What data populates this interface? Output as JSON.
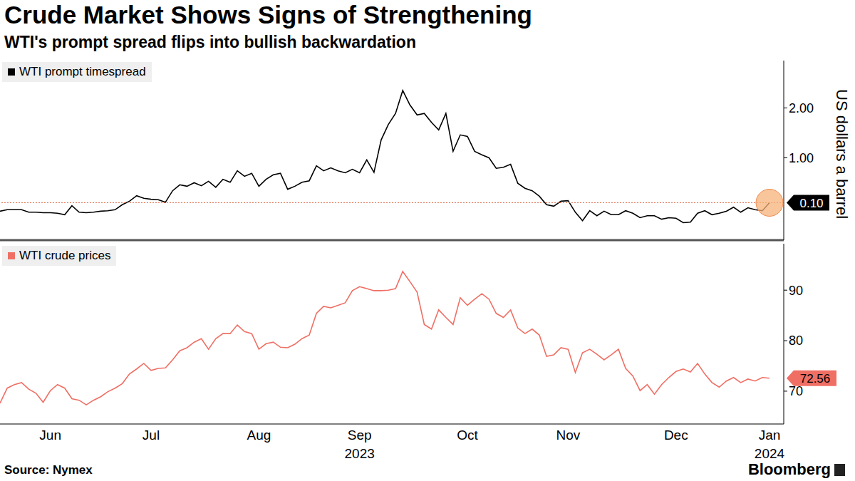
{
  "chart_data": [
    {
      "type": "line",
      "title": "Crude Market Shows Signs of Strengthening",
      "subtitle": "WTI's prompt spread flips into bullish backwardation",
      "y_label": "US dollars a barrel",
      "tick_labels": "y",
      "categories": [
        null,
        null,
        null,
        null,
        null,
        null,
        null,
        null,
        null,
        null,
        null,
        null,
        null,
        null,
        null,
        null,
        null,
        null,
        null,
        null,
        null,
        null,
        null,
        null,
        null,
        null,
        null,
        null,
        null,
        null,
        null,
        null,
        null,
        null,
        null,
        null,
        null,
        null,
        null,
        null,
        null,
        null,
        null,
        null,
        null,
        null,
        null,
        null,
        null,
        null,
        null,
        null,
        null,
        null,
        null,
        null,
        null,
        null,
        null,
        null,
        null,
        null,
        null,
        null,
        null,
        null,
        null,
        null,
        null,
        null,
        null,
        null,
        null,
        null,
        null,
        null,
        null,
        null,
        null,
        null,
        null,
        null,
        null,
        null,
        null,
        null,
        null,
        null,
        null,
        null,
        null,
        null,
        null,
        null,
        null,
        null,
        null,
        null,
        null,
        null,
        null,
        null,
        null,
        null,
        null,
        null,
        null,
        null
      ],
      "series": [
        {
          "name": "WTI prompt timespread",
          "color": "#000000",
          "values": [
            -0.07,
            -0.04,
            -0.04,
            -0.04,
            -0.09,
            -0.09,
            -0.1,
            -0.1,
            -0.11,
            -0.14,
            0.04,
            -0.09,
            -0.1,
            -0.09,
            -0.07,
            -0.06,
            -0.04,
            0.06,
            0.13,
            0.24,
            0.19,
            0.17,
            0.16,
            0.11,
            0.34,
            0.46,
            0.43,
            0.5,
            0.44,
            0.53,
            0.41,
            0.57,
            0.51,
            0.74,
            0.63,
            0.69,
            0.43,
            0.57,
            0.66,
            0.69,
            0.37,
            0.43,
            0.51,
            0.54,
            0.84,
            0.74,
            0.8,
            0.74,
            0.7,
            0.77,
            0.7,
            0.96,
            0.71,
            1.36,
            1.67,
            1.89,
            2.35,
            2.06,
            1.86,
            1.89,
            1.71,
            1.56,
            1.89,
            1.13,
            1.46,
            1.43,
            1.13,
            1.06,
            1.0,
            0.79,
            0.81,
            0.87,
            0.49,
            0.39,
            0.34,
            0.23,
            0.06,
            0.03,
            0.13,
            0.14,
            -0.09,
            -0.26,
            -0.06,
            -0.16,
            -0.07,
            -0.14,
            -0.14,
            -0.06,
            -0.11,
            -0.2,
            -0.16,
            -0.16,
            -0.23,
            -0.2,
            -0.21,
            -0.3,
            -0.29,
            -0.11,
            -0.06,
            -0.14,
            -0.11,
            -0.07,
            0.01,
            -0.09,
            0,
            -0.04,
            -0.06,
            0.1
          ]
        }
      ],
      "ylim": [
        -0.65,
        2.95
      ],
      "yticks": [
        {
          "value": 1,
          "label": "1.00"
        },
        {
          "value": 2,
          "label": "2.00"
        }
      ],
      "end_label": {
        "value": 0.1,
        "label": "0.10"
      }
    },
    {
      "type": "line",
      "source": "Source: Nymex",
      "credit": "Bloomberg",
      "categories": [
        null,
        null,
        null,
        null,
        null,
        null,
        null,
        "Jun",
        null,
        null,
        null,
        null,
        null,
        null,
        null,
        null,
        null,
        null,
        null,
        null,
        null,
        "Jul",
        null,
        null,
        null,
        null,
        null,
        null,
        null,
        null,
        null,
        null,
        null,
        null,
        null,
        null,
        "Aug",
        null,
        null,
        null,
        null,
        null,
        null,
        null,
        null,
        null,
        null,
        null,
        null,
        null,
        "Sep 2023",
        null,
        null,
        null,
        null,
        null,
        null,
        null,
        null,
        null,
        null,
        null,
        null,
        null,
        null,
        "Oct",
        null,
        null,
        null,
        null,
        null,
        null,
        null,
        null,
        null,
        null,
        null,
        null,
        null,
        "Nov",
        null,
        null,
        null,
        null,
        null,
        null,
        null,
        null,
        null,
        null,
        null,
        null,
        null,
        null,
        "Dec",
        null,
        null,
        null,
        null,
        null,
        null,
        null,
        null,
        null,
        null,
        null,
        null,
        "Jan 2024"
      ],
      "series": [
        {
          "name": "WTI crude prices",
          "color": "#ef6f64",
          "values": [
            67.6,
            70.6,
            71.3,
            71.7,
            70.4,
            69.6,
            67.8,
            70.1,
            71.3,
            70.6,
            68.5,
            68.2,
            67.3,
            68.2,
            68.9,
            69.9,
            70.6,
            71.5,
            73.4,
            74.4,
            75.5,
            74.1,
            74.5,
            74.6,
            76.2,
            78,
            78.6,
            79.7,
            80.4,
            78.3,
            80.4,
            81.4,
            81.4,
            83.1,
            81.8,
            81.4,
            78.3,
            79.4,
            79.7,
            78.7,
            78.6,
            79.3,
            80.4,
            81.1,
            85.4,
            86.8,
            86.5,
            87.0,
            87.5,
            89.9,
            90.7,
            90.3,
            89.9,
            89.9,
            90.0,
            90.3,
            93.7,
            91.7,
            89.6,
            83.2,
            82.3,
            86.1,
            84.6,
            83.2,
            88.5,
            87.0,
            88.2,
            89.3,
            88.2,
            85.4,
            84.6,
            86.1,
            82.5,
            81.4,
            82.3,
            81.1,
            76.9,
            77.2,
            78.6,
            78.3,
            73.7,
            77.6,
            78.3,
            77.3,
            76.2,
            77.2,
            78.3,
            74.5,
            73.0,
            70.1,
            71.3,
            69.4,
            71.3,
            72.7,
            73.9,
            74.4,
            73.8,
            75.5,
            73.4,
            71.7,
            70.8,
            72.0,
            72.7,
            71.7,
            72.4,
            72.0,
            72.7,
            72.56
          ]
        }
      ],
      "ylim": [
        63.5,
        99.2
      ],
      "yticks": [
        70,
        80,
        90
      ],
      "end_label": {
        "value": 72.56,
        "label": "72.56"
      }
    }
  ]
}
